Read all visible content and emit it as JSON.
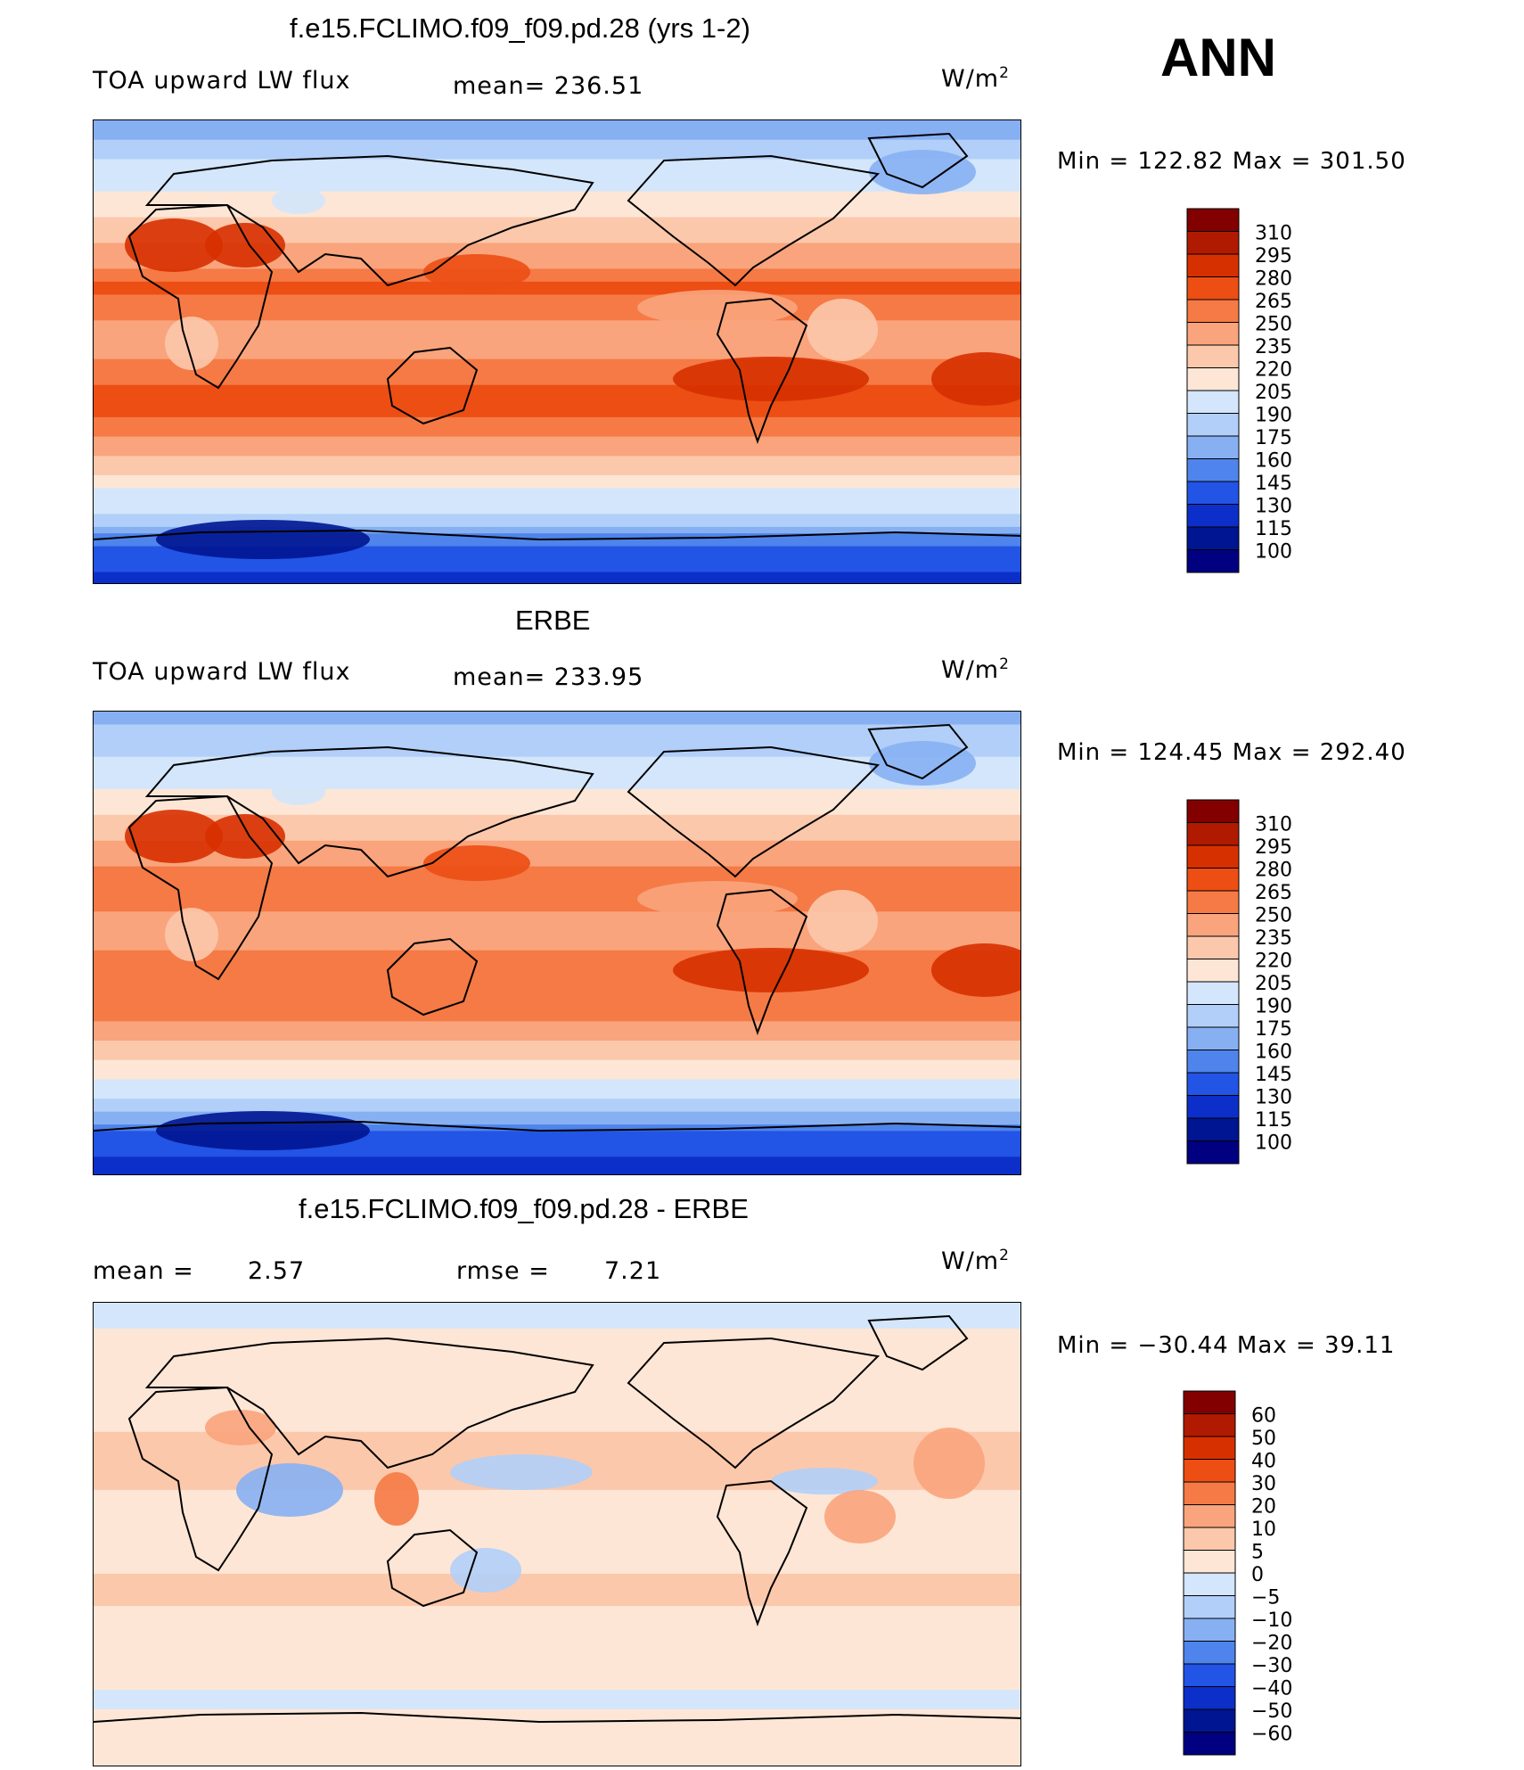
{
  "season": "ANN",
  "panels": [
    {
      "id": "model",
      "title": "f.e15.FCLIMO.f09_f09.pd.28 (yrs 1-2)",
      "variable": "TOA upward LW flux",
      "stat_text": "mean=  236.51",
      "units": "W/m",
      "units_exp": "2",
      "minmax_text": "Min  =  122.82  Max  =  301.50"
    },
    {
      "id": "obs",
      "title": "ERBE",
      "variable": "TOA upward LW flux",
      "stat_text": "mean=  233.95",
      "units": "W/m",
      "units_exp": "2",
      "minmax_text": "Min  =  124.45  Max  =  292.40"
    },
    {
      "id": "diff",
      "title": "f.e15.FCLIMO.f09_f09.pd.28 - ERBE",
      "mean_label": "mean  =",
      "mean_value": "2.57",
      "rmse_label": "rmse  =",
      "rmse_value": "7.21",
      "units": "W/m",
      "units_exp": "2",
      "minmax_text": "Min  =  −30.44  Max  =    39.11"
    }
  ],
  "chart_data": [
    {
      "type": "heatmap",
      "title": "f.e15.FCLIMO.f09_f09.pd.28 (yrs 1-2)",
      "variable": "TOA upward LW flux",
      "units": "W/m2",
      "mean": 236.51,
      "min": 122.82,
      "max": 301.5,
      "colorbar_levels": [
        "310",
        "295",
        "280",
        "265",
        "250",
        "235",
        "220",
        "205",
        "190",
        "175",
        "160",
        "145",
        "130",
        "115",
        "100"
      ],
      "zonal_profile": {
        "lat": [
          85,
          75,
          65,
          55,
          45,
          35,
          25,
          15,
          5,
          -5,
          -15,
          -25,
          -35,
          -45,
          -55,
          -65,
          -75,
          -85
        ],
        "value": [
          170,
          190,
          200,
          215,
          230,
          245,
          270,
          255,
          240,
          255,
          270,
          265,
          245,
          225,
          200,
          185,
          140,
          130
        ]
      }
    },
    {
      "type": "heatmap",
      "title": "ERBE",
      "variable": "TOA upward LW flux",
      "units": "W/m2",
      "mean": 233.95,
      "min": 124.45,
      "max": 292.4,
      "colorbar_levels": [
        "310",
        "295",
        "280",
        "265",
        "250",
        "235",
        "220",
        "205",
        "190",
        "175",
        "160",
        "145",
        "130",
        "115",
        "100"
      ],
      "zonal_profile": {
        "lat": [
          85,
          75,
          65,
          55,
          45,
          35,
          25,
          15,
          5,
          -5,
          -15,
          -25,
          -35,
          -45,
          -55,
          -65,
          -75,
          -85
        ],
        "value": [
          175,
          185,
          200,
          212,
          228,
          242,
          262,
          252,
          238,
          252,
          262,
          258,
          240,
          222,
          200,
          180,
          138,
          128
        ]
      }
    },
    {
      "type": "heatmap",
      "title": "f.e15.FCLIMO.f09_f09.pd.28 - ERBE",
      "variable": "TOA upward LW flux difference",
      "units": "W/m2",
      "mean": 2.57,
      "rmse": 7.21,
      "min": -30.44,
      "max": 39.11,
      "colorbar_levels": [
        "60",
        "50",
        "40",
        "30",
        "20",
        "10",
        "5",
        "0",
        "−5",
        "−10",
        "−20",
        "−30",
        "−40",
        "−50",
        "−60"
      ],
      "zonal_profile": {
        "lat": [
          85,
          75,
          65,
          55,
          45,
          35,
          25,
          15,
          5,
          -5,
          -15,
          -25,
          -35,
          -45,
          -55,
          -65,
          -75,
          -85
        ],
        "value": [
          -2,
          3,
          4,
          3,
          4,
          6,
          8,
          4,
          2,
          3,
          5,
          6,
          2,
          1,
          1,
          -1,
          2,
          2
        ]
      }
    }
  ],
  "palettes": {
    "flux": [
      "#820000",
      "#b01a00",
      "#d73000",
      "#ec4e14",
      "#f57a45",
      "#f9a47c",
      "#fcc8ab",
      "#fde6d6",
      "#d3e6fb",
      "#b1cff8",
      "#87b0f3",
      "#4f84ec",
      "#2254e6",
      "#0c2fc9",
      "#001591",
      "#000080"
    ],
    "diff": [
      "#820000",
      "#b01a00",
      "#d73000",
      "#ec4e14",
      "#f57a45",
      "#f9a47c",
      "#fcc8ab",
      "#fde6d6",
      "#d3e6fb",
      "#b1cff8",
      "#87b0f3",
      "#4f84ec",
      "#2254e6",
      "#0c2fc9",
      "#001591",
      "#000080"
    ]
  }
}
